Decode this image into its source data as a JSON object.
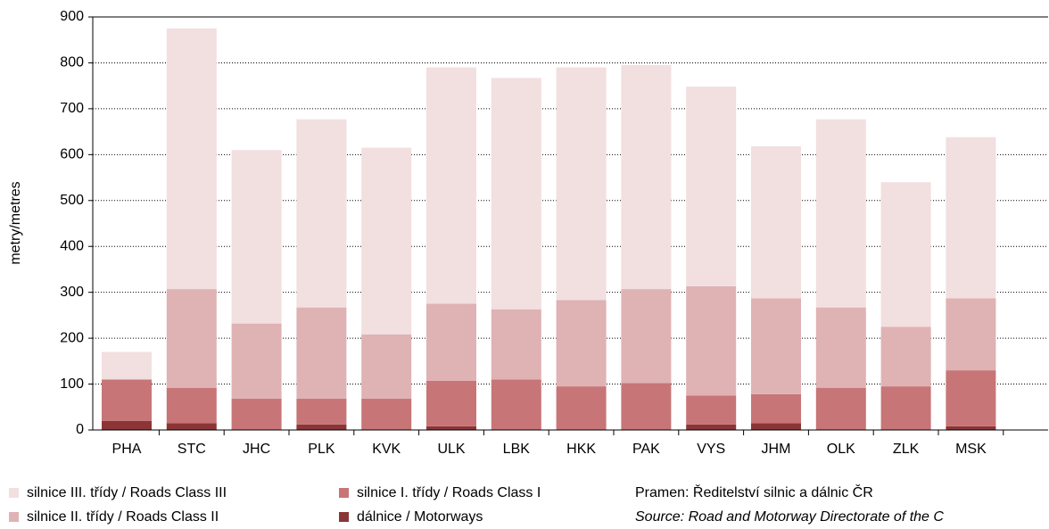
{
  "chart_data": {
    "type": "stacked-bar",
    "y_label": "metry/metres",
    "categories": [
      "PHA",
      "STC",
      "JHC",
      "PLK",
      "KVK",
      "ULK",
      "LBK",
      "HKK",
      "PAK",
      "VYS",
      "JHM",
      "OLK",
      "ZLK",
      "MSK"
    ],
    "series": [
      {
        "name": "dálnice / Motorways",
        "color": "#8b3536",
        "values": [
          20,
          15,
          0,
          12,
          0,
          8,
          0,
          0,
          0,
          12,
          15,
          0,
          0,
          8
        ]
      },
      {
        "name": "silnice I. třídy / Roads Class I",
        "color": "#c77577",
        "values": [
          90,
          77,
          68,
          56,
          68,
          99,
          110,
          95,
          102,
          63,
          63,
          92,
          95,
          122
        ]
      },
      {
        "name": "silnice II. třídy / Roads Class II",
        "color": "#dfb2b4",
        "values": [
          0,
          215,
          164,
          199,
          140,
          168,
          153,
          188,
          205,
          238,
          209,
          175,
          130,
          157
        ]
      },
      {
        "name": "silnice III. třídy / Roads Class III",
        "color": "#f2dfe0",
        "values": [
          60,
          568,
          378,
          410,
          407,
          515,
          504,
          507,
          488,
          435,
          331,
          410,
          315,
          351
        ]
      }
    ],
    "ylim": [
      0,
      900
    ],
    "yticks": [
      0,
      100,
      200,
      300,
      400,
      500,
      600,
      700,
      800,
      900
    ],
    "grid": true,
    "source": [
      "Pramen: Ředitelství silnic a dálnic ČR",
      "Source: Road and Motorway Directorate of the C"
    ]
  }
}
